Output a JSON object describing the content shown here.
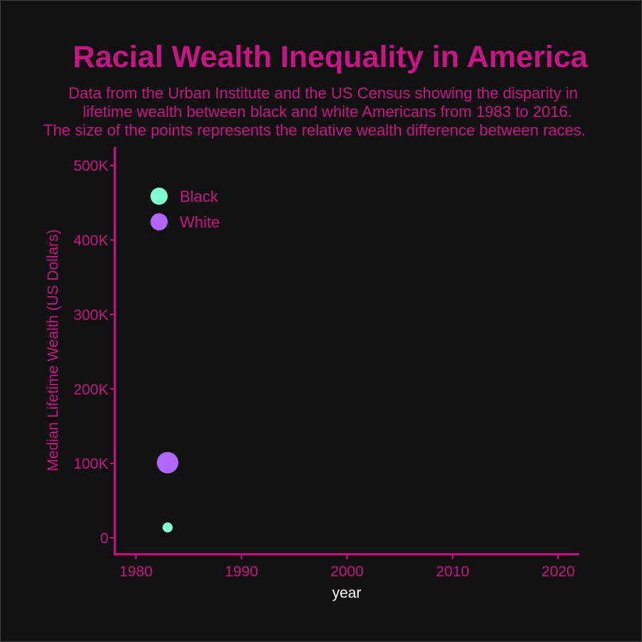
{
  "chart_data": {
    "type": "scatter",
    "title": "Racial Wealth Inequality in America",
    "subtitle": [
      "Data from the Urban Institute and the US Census showing the disparity in",
      "lifetime wealth between black and white Americans from 1983 to 2016.",
      "The size of the points represents the relative wealth difference between races."
    ],
    "xlabel": "year",
    "ylabel": "Median Lifetime Wealth (US Dollars)",
    "xlim": [
      1978,
      2022
    ],
    "ylim": [
      -22000,
      525000
    ],
    "x_ticks": [
      1980,
      1990,
      2000,
      2010,
      2020
    ],
    "x_tick_labels": [
      "1980",
      "1990",
      "2000",
      "2010",
      "2020"
    ],
    "y_ticks": [
      0,
      100000,
      200000,
      300000,
      400000,
      500000
    ],
    "y_tick_labels": [
      "0",
      "100K",
      "200K",
      "300K",
      "400K",
      "500K"
    ],
    "grid": false,
    "legend_position": "top-left",
    "series": [
      {
        "name": "Black",
        "color": "#7fffd4",
        "points": [
          {
            "x": 1983,
            "y": 14000,
            "size": 1
          }
        ]
      },
      {
        "name": "White",
        "color": "#b266ff",
        "points": [
          {
            "x": 1983,
            "y": 101000,
            "size": 2
          }
        ]
      }
    ],
    "colors": {
      "text": "#c71585",
      "axis": "#c71585",
      "xlabel": "#ffffff",
      "background": "#111111"
    }
  }
}
